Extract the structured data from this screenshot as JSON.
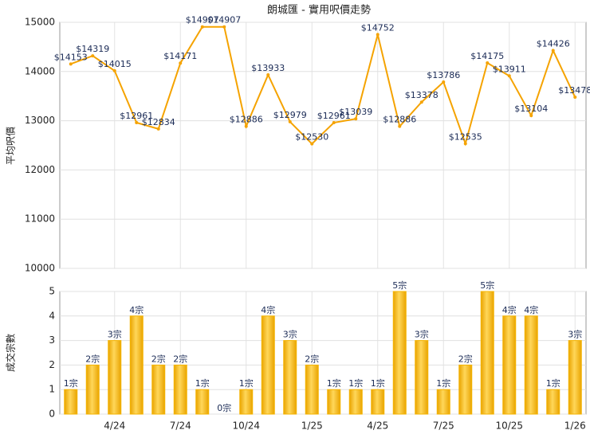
{
  "chart_data": [
    {
      "type": "line",
      "title": "朗城匯 - 實用呎價走勢",
      "y_label": "平均呎價",
      "color": "#f5a300",
      "values": [
        14153,
        14319,
        14015,
        12961,
        12834,
        14171,
        14907,
        14907,
        12886,
        13933,
        12979,
        12530,
        12961,
        13039,
        14752,
        12886,
        13378,
        13786,
        12535,
        14175,
        13911,
        13104,
        14426,
        13478
      ],
      "value_labels": [
        "$14153",
        "$14319",
        "$14015",
        "$12961",
        "$12834",
        "$14171",
        "$14907",
        "$14907",
        "$12886",
        "$13933",
        "$12979",
        "$12530",
        "$12961",
        "$13039",
        "$14752",
        "$12886",
        "$13378",
        "$13786",
        "$12535",
        "$14175",
        "$13911",
        "$13104",
        "$14426",
        "$13478"
      ],
      "ylim": [
        10000,
        15000
      ],
      "yticks": [
        10000,
        11000,
        12000,
        13000,
        14000,
        15000
      ],
      "grid": true
    },
    {
      "type": "bar",
      "y_label": "成交宗數",
      "color": "#f5b400",
      "categories": [
        null,
        null,
        "4/24",
        null,
        null,
        "7/24",
        null,
        null,
        "10/24",
        null,
        null,
        "1/25",
        null,
        null,
        "4/25",
        null,
        null,
        "7/25",
        null,
        null,
        "10/25",
        null,
        null,
        "1/26"
      ],
      "values": [
        1,
        2,
        3,
        4,
        2,
        2,
        1,
        0,
        1,
        4,
        3,
        2,
        1,
        1,
        1,
        5,
        3,
        1,
        2,
        5,
        4,
        4,
        1,
        3
      ],
      "value_labels": [
        "1宗",
        "2宗",
        "3宗",
        "4宗",
        "2宗",
        "2宗",
        "1宗",
        "0宗",
        "1宗",
        "4宗",
        "3宗",
        "2宗",
        "1宗",
        "1宗",
        "1宗",
        "5宗",
        "3宗",
        "1宗",
        "2宗",
        "5宗",
        "4宗",
        "4宗",
        "1宗",
        "3宗"
      ],
      "ylim": [
        0,
        5
      ],
      "yticks": [
        0,
        1,
        2,
        3,
        4,
        5
      ],
      "grid": true
    }
  ]
}
